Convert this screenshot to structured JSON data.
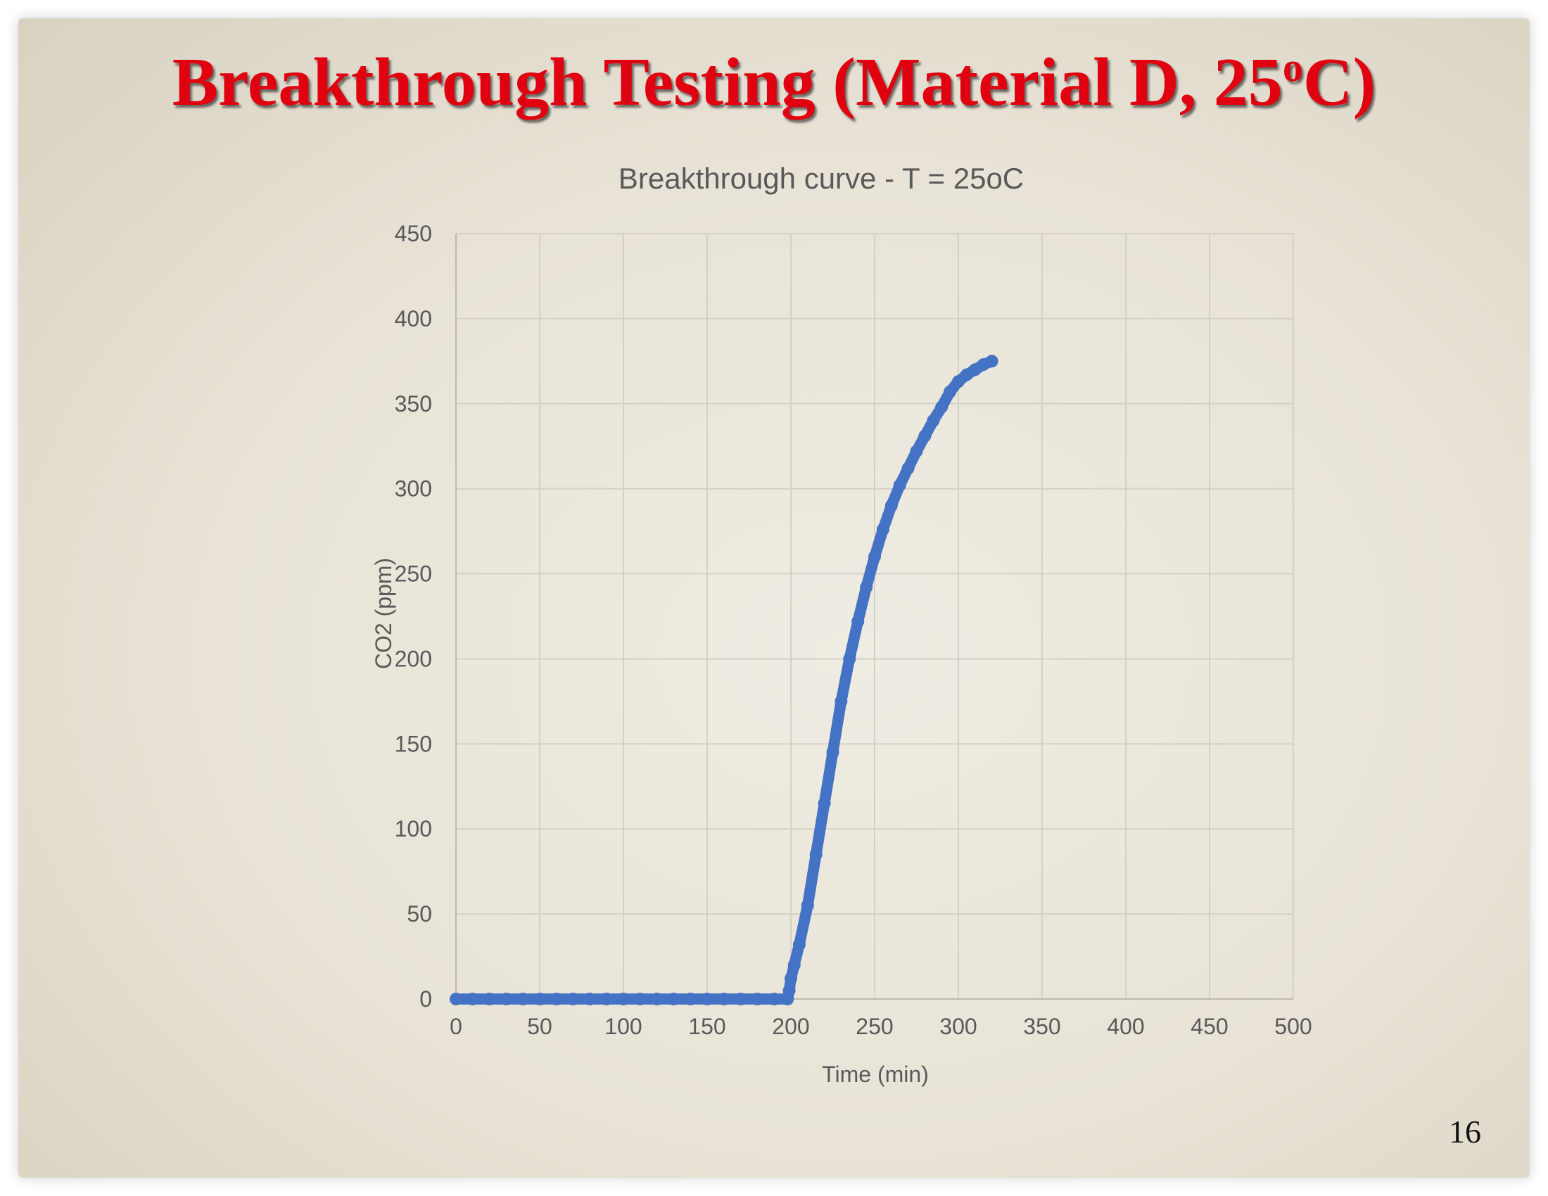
{
  "slide": {
    "title_main": "Breakthrough Testing (Material D, 25",
    "title_sup": "o",
    "title_end": "C)",
    "page_number": "16"
  },
  "chart_data": {
    "type": "scatter",
    "title": "Breakthrough curve - T = 25oC",
    "xlabel": "Time (min)",
    "ylabel": "CO2 (ppm)",
    "xlim": [
      0,
      500
    ],
    "ylim": [
      0,
      450
    ],
    "xticks": [
      0,
      50,
      100,
      150,
      200,
      250,
      300,
      350,
      400,
      450,
      500
    ],
    "yticks": [
      0,
      50,
      100,
      150,
      200,
      250,
      300,
      350,
      400,
      450
    ],
    "grid": true,
    "legend": "none",
    "series_color": "#4472c4",
    "series": [
      {
        "x": [
          0,
          10,
          20,
          30,
          40,
          50,
          60,
          70,
          80,
          90,
          100,
          110,
          120,
          130,
          140,
          150,
          160,
          170,
          180,
          190,
          198,
          199,
          200,
          202,
          205,
          210,
          215,
          220,
          225,
          230,
          235,
          240,
          245,
          250,
          255,
          260,
          265,
          270,
          275,
          280,
          285,
          290,
          295,
          300,
          305,
          310,
          315,
          320
        ],
        "y": [
          0,
          0,
          0,
          0,
          0,
          0,
          0,
          0,
          0,
          0,
          0,
          0,
          0,
          0,
          0,
          0,
          0,
          0,
          0,
          0,
          0,
          5,
          12,
          20,
          32,
          55,
          85,
          115,
          145,
          175,
          200,
          222,
          242,
          260,
          276,
          290,
          302,
          312,
          322,
          331,
          340,
          348,
          357,
          363,
          367,
          370,
          373,
          375
        ]
      }
    ]
  }
}
